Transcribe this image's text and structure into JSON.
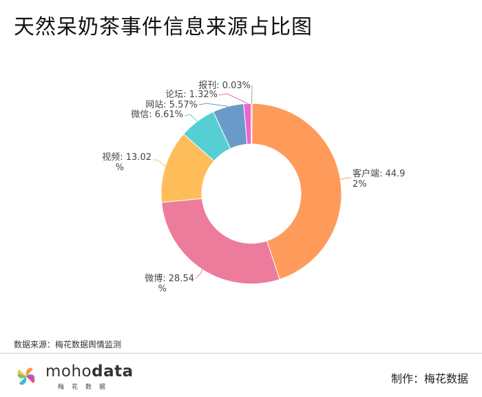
{
  "title": "天然呆奶茶事件信息来源占比图",
  "source_text": "数据来源：梅花数据舆情监测",
  "logo": {
    "brand_light": "moho",
    "brand_bold": "data",
    "sub": "梅花数据"
  },
  "credit": "制作：梅花数据",
  "chart_data": {
    "type": "pie",
    "donut": true,
    "slices": [
      {
        "name": "客户端",
        "value": 44.92,
        "label": [
          "客户端: 44.9",
          "2%"
        ],
        "color": "#FF9B5A"
      },
      {
        "name": "微博",
        "value": 28.54,
        "label": [
          "微博: 28.54",
          "%"
        ],
        "color": "#ED7C9C"
      },
      {
        "name": "视频",
        "value": 13.02,
        "label": [
          "视频: 13.02",
          "%"
        ],
        "color": "#FFBD5A"
      },
      {
        "name": "微信",
        "value": 6.61,
        "label": [
          "微信: 6.61%"
        ],
        "color": "#56CFD3"
      },
      {
        "name": "网站",
        "value": 5.57,
        "label": [
          "网站: 5.57%"
        ],
        "color": "#6A9BC8"
      },
      {
        "name": "论坛",
        "value": 1.32,
        "label": [
          "论坛: 1.32%"
        ],
        "color": "#EE64CF"
      },
      {
        "name": "报刊",
        "value": 0.03,
        "label": [
          "报刊: 0.03%"
        ],
        "color": "#9AAE6C"
      }
    ]
  }
}
